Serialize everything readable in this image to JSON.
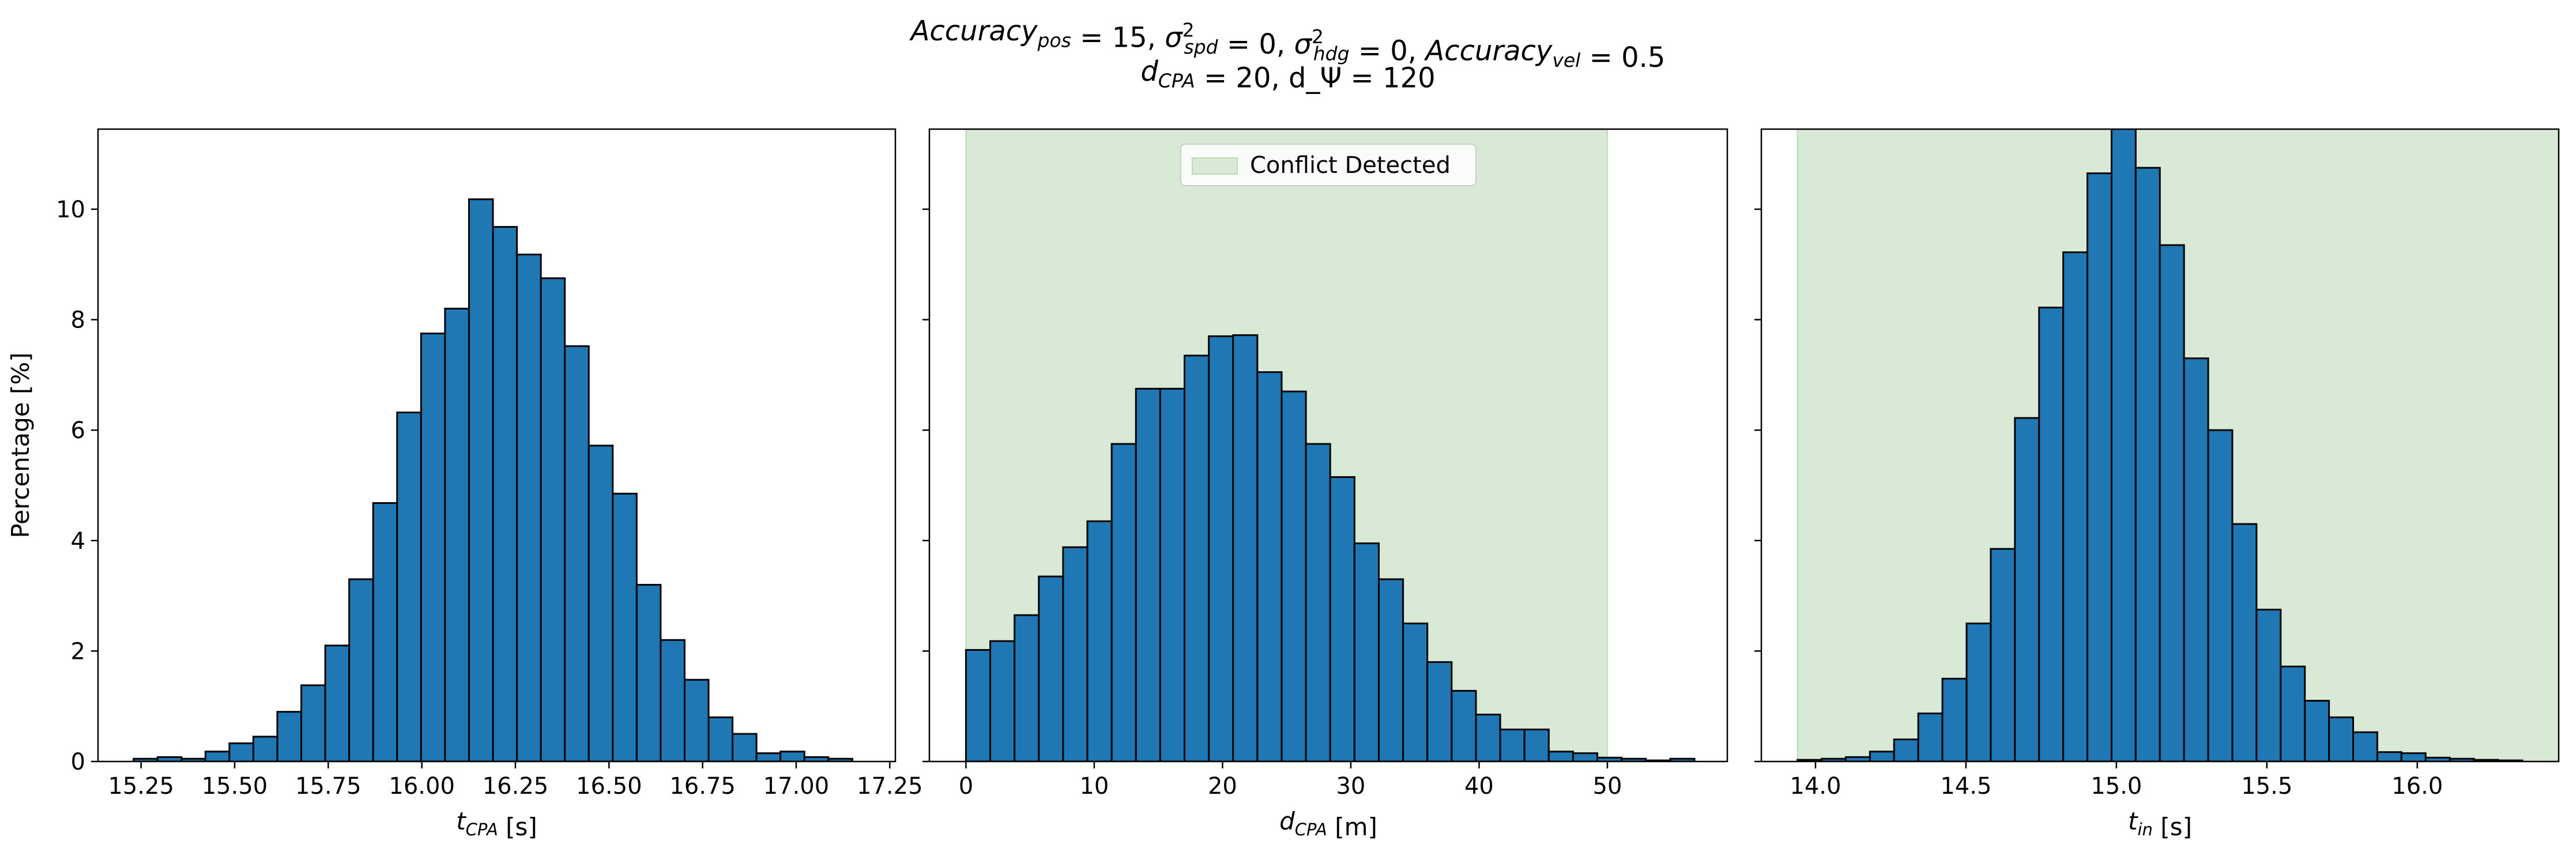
{
  "figure": {
    "title_line1": "Accuracy_pos = 15, σ²_spd = 0, σ²_hdg = 0, Accuracy_vel = 0.5",
    "title_line2": "d_CPA = 20, d_Ψ = 120"
  },
  "colors": {
    "bar_fill": "#1f77b4",
    "bar_edge": "#000000",
    "conflict_region": "#d8ead6",
    "conflict_edge": "#b9dcb5"
  },
  "chart_data": [
    {
      "type": "bar",
      "ylabel": "Percentage [%]",
      "xlabel": "t_CPA [s]",
      "xlim": [
        15.135,
        17.265
      ],
      "ylim": [
        0,
        11.45
      ],
      "xticks": [
        15.25,
        15.5,
        15.75,
        16.0,
        16.25,
        16.5,
        16.75,
        17.0,
        17.25
      ],
      "xtick_labels": [
        "15.25",
        "15.50",
        "15.75",
        "16.00",
        "16.25",
        "16.50",
        "16.75",
        "17.00",
        "17.25"
      ],
      "yticks": [
        0,
        2,
        4,
        6,
        8,
        10
      ],
      "ytick_labels": [
        "0",
        "2",
        "4",
        "6",
        "8",
        "10"
      ],
      "bin_start": 15.23,
      "bin_width": 0.064,
      "values": [
        0.05,
        0.08,
        0.05,
        0.18,
        0.33,
        0.45,
        0.9,
        1.38,
        2.1,
        3.3,
        4.68,
        6.32,
        7.75,
        8.2,
        10.18,
        9.68,
        9.18,
        8.75,
        7.52,
        5.72,
        4.85,
        3.2,
        2.2,
        1.48,
        0.8,
        0.5,
        0.15,
        0.18,
        0.08,
        0.05
      ],
      "conflict_range": null,
      "legend": null
    },
    {
      "type": "bar",
      "ylabel": "",
      "xlabel": "d_CPA [m]",
      "xlim": [
        -2.85,
        59.35
      ],
      "ylim": [
        0,
        11.45
      ],
      "xticks": [
        0,
        10,
        20,
        30,
        40,
        50
      ],
      "xtick_labels": [
        "0",
        "10",
        "20",
        "30",
        "40",
        "50"
      ],
      "yticks": [
        0,
        2,
        4,
        6,
        8,
        10
      ],
      "ytick_labels": [
        "",
        "",
        "",
        "",
        "",
        ""
      ],
      "bin_start": 0,
      "bin_width": 1.893,
      "values": [
        2.02,
        2.18,
        2.65,
        3.35,
        3.88,
        4.35,
        5.75,
        6.75,
        6.75,
        7.35,
        7.7,
        7.72,
        7.05,
        6.7,
        5.75,
        5.15,
        3.95,
        3.3,
        2.5,
        1.8,
        1.28,
        0.85,
        0.58,
        0.58,
        0.18,
        0.15,
        0.07,
        0.05,
        0.02,
        0.05
      ],
      "conflict_range": [
        0,
        50
      ],
      "legend": {
        "label": "Conflict Detected",
        "position": "upper center"
      }
    },
    {
      "type": "bar",
      "ylabel": "",
      "xlabel": "t_in [s]",
      "xlim": [
        13.82,
        16.47
      ],
      "ylim": [
        0,
        11.45
      ],
      "xticks": [
        14.0,
        14.5,
        15.0,
        15.5,
        16.0
      ],
      "xtick_labels": [
        "14.0",
        "14.5",
        "15.0",
        "15.5",
        "16.0"
      ],
      "yticks": [
        0,
        2,
        4,
        6,
        8,
        10
      ],
      "ytick_labels": [
        "",
        "",
        "",
        "",
        "",
        ""
      ],
      "bin_start": 13.94,
      "bin_width": 0.0803,
      "values": [
        0.03,
        0.05,
        0.08,
        0.18,
        0.4,
        0.87,
        1.5,
        2.5,
        3.85,
        6.22,
        8.22,
        9.22,
        10.65,
        11.5,
        10.75,
        9.35,
        7.3,
        6.0,
        4.3,
        2.75,
        1.72,
        1.1,
        0.8,
        0.53,
        0.17,
        0.15,
        0.07,
        0.05,
        0.03,
        0.02
      ],
      "conflict_range": [
        13.94,
        16.47
      ],
      "legend": null
    }
  ]
}
